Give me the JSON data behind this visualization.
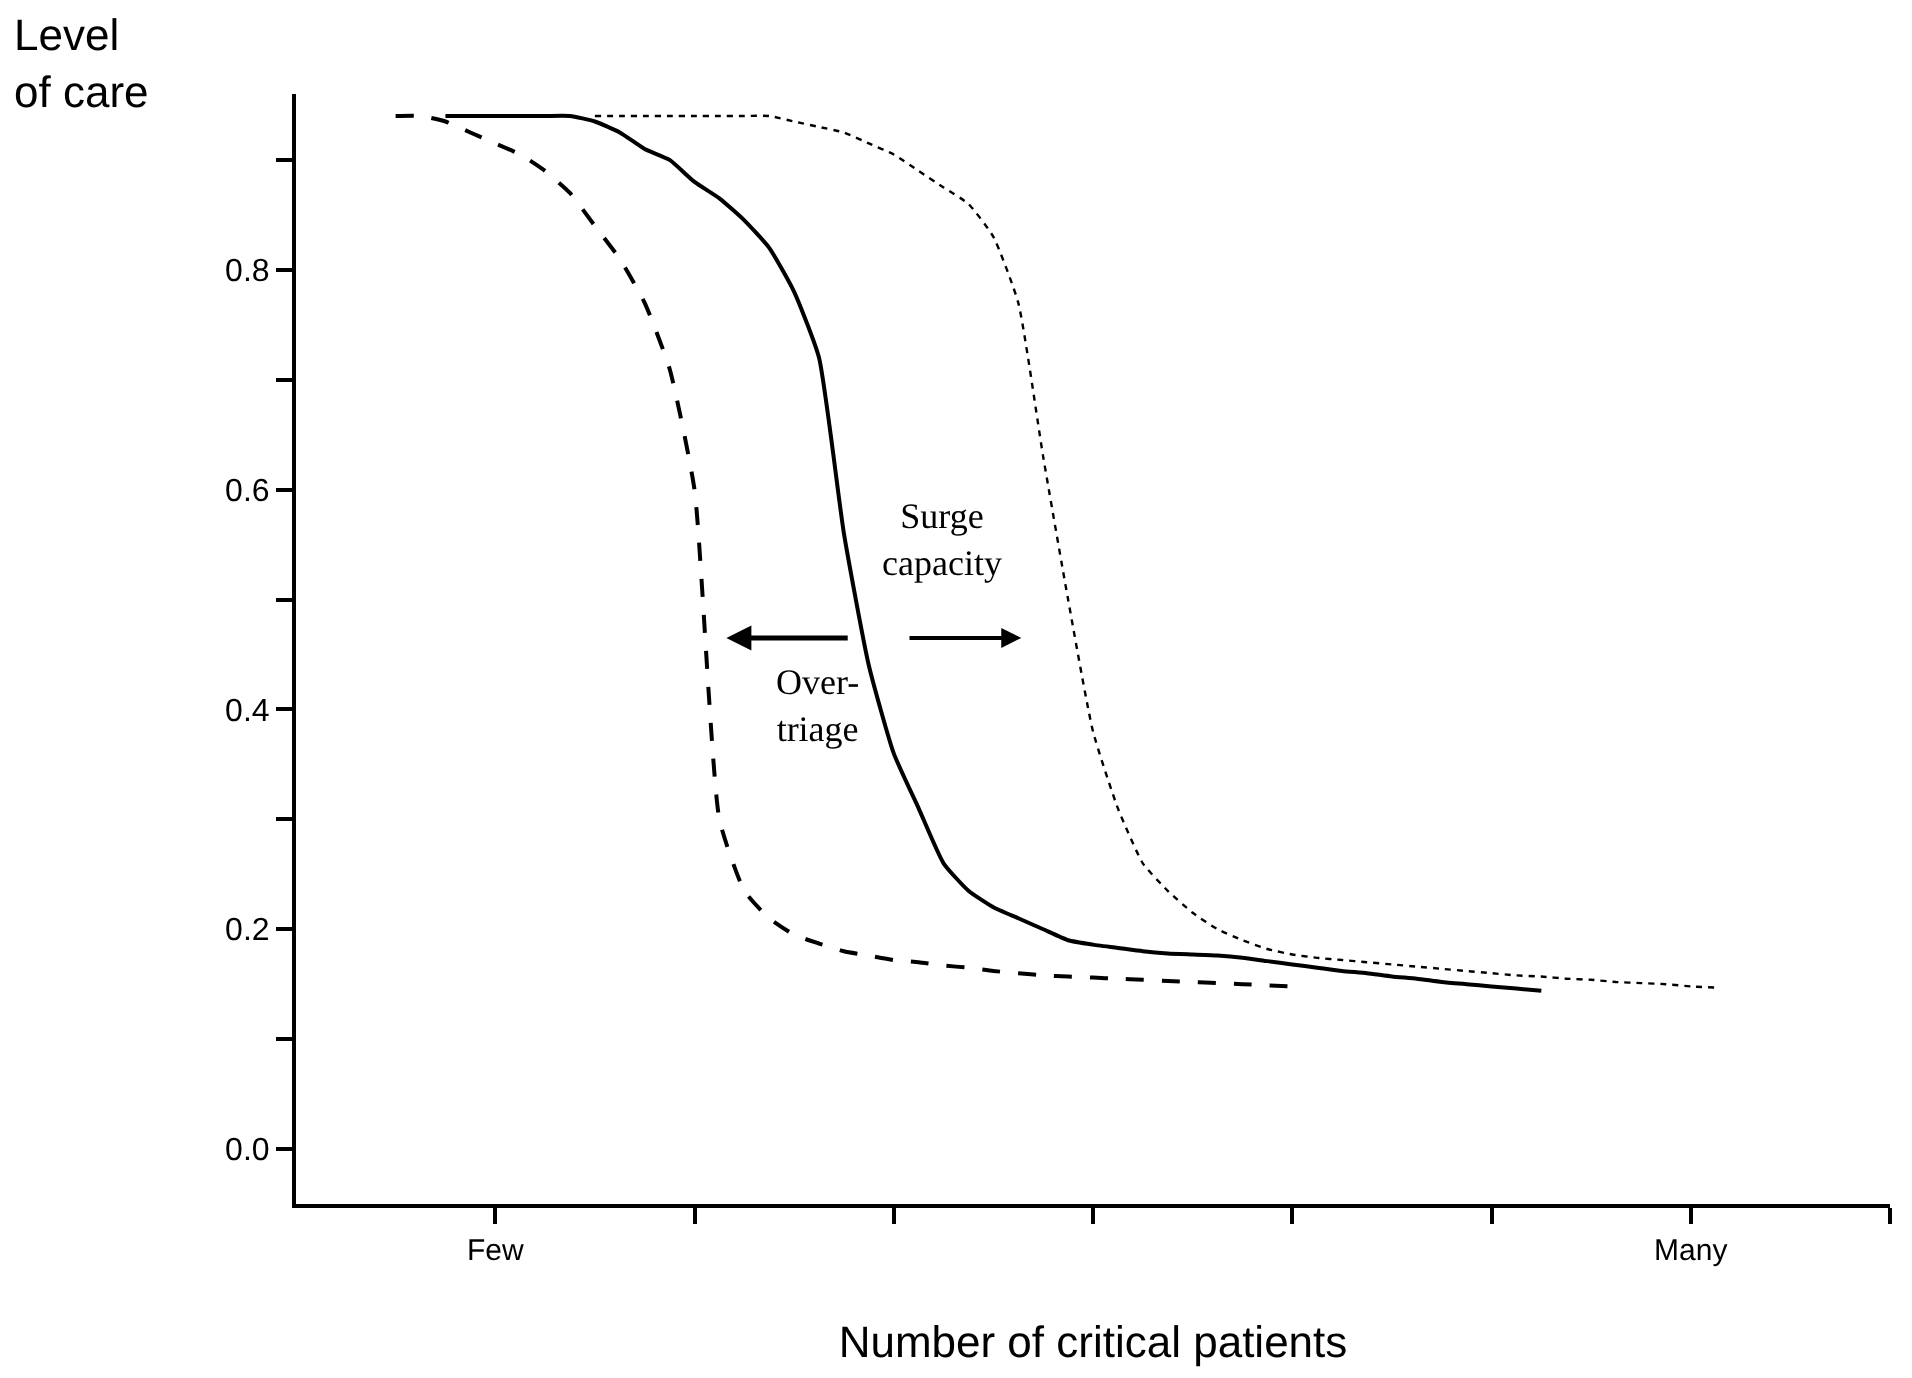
{
  "chart_data": {
    "type": "line",
    "xlabel": "Number of critical patients",
    "ylabel": "Level\nof care",
    "categories": [
      null,
      null,
      null,
      null,
      null,
      null,
      null,
      null,
      "Few",
      null,
      null,
      null,
      null,
      null,
      null,
      null,
      null,
      null,
      null,
      null,
      null,
      null,
      null,
      null,
      null,
      null,
      null,
      null,
      null,
      null,
      null,
      null,
      null,
      null,
      null,
      null,
      null,
      null,
      null,
      null,
      null,
      null,
      null,
      null,
      null,
      null,
      null,
      null,
      null,
      null,
      null,
      null,
      null,
      null,
      null,
      null,
      "Many",
      null,
      null,
      null,
      null,
      null,
      null,
      null,
      null
    ],
    "ylim": [
      -0.05,
      0.96
    ],
    "yticks": [
      {
        "value": 0,
        "label": "0.0"
      },
      {
        "value": 0.1,
        "label": null
      },
      0.2,
      {
        "value": 0.3,
        "label": null
      },
      0.4,
      {
        "value": 0.5,
        "label": null
      },
      0.6,
      {
        "value": 0.7,
        "label": null
      },
      0.8,
      {
        "value": 0.9,
        "label": null
      }
    ],
    "marker": "none",
    "series": [
      {
        "color": "#000000",
        "line_style": "dashed",
        "values": [
          null,
          null,
          null,
          null,
          0.94,
          0.94,
          0.935,
          0.925,
          0.915,
          0.905,
          0.89,
          0.87,
          0.84,
          0.81,
          0.77,
          0.71,
          0.6,
          0.3,
          0.235,
          0.21,
          0.195,
          0.187,
          0.18,
          0.176,
          0.172,
          0.17,
          0.167,
          0.165,
          0.162,
          0.16,
          0.158,
          0.157,
          0.156,
          0.155,
          0.154,
          0.153,
          0.152,
          0.151,
          0.15,
          0.149,
          0.148,
          null,
          null,
          null,
          null,
          null,
          null,
          null,
          null,
          null,
          null,
          null,
          null,
          null,
          null,
          null,
          null,
          null,
          null,
          null,
          null,
          null,
          null,
          null,
          null
        ]
      },
      {
        "color": "#000000",
        "line_style": "solid",
        "values": [
          null,
          null,
          null,
          null,
          null,
          null,
          0.94,
          0.94,
          0.94,
          0.94,
          0.94,
          0.94,
          0.935,
          0.925,
          0.91,
          0.9,
          0.88,
          0.865,
          0.845,
          0.82,
          0.78,
          0.72,
          0.56,
          0.44,
          0.36,
          0.31,
          0.26,
          0.235,
          0.22,
          0.21,
          0.2,
          0.19,
          0.186,
          0.183,
          0.18,
          0.178,
          0.177,
          0.176,
          0.174,
          0.171,
          0.168,
          0.165,
          0.162,
          0.16,
          0.157,
          0.155,
          0.152,
          0.15,
          0.148,
          0.146,
          0.144,
          null,
          null,
          null,
          null,
          null,
          null,
          null,
          null,
          null,
          null,
          null,
          null,
          null,
          null
        ]
      },
      {
        "color": "#000000",
        "line_style": "dotted",
        "values": [
          null,
          null,
          null,
          null,
          null,
          null,
          null,
          null,
          null,
          null,
          null,
          null,
          0.94,
          0.94,
          0.94,
          0.94,
          0.94,
          0.94,
          0.94,
          0.94,
          0.935,
          0.93,
          0.925,
          0.915,
          0.905,
          0.89,
          0.875,
          0.86,
          0.83,
          0.77,
          0.63,
          0.5,
          0.38,
          0.31,
          0.26,
          0.235,
          0.215,
          0.2,
          0.19,
          0.182,
          0.177,
          0.174,
          0.172,
          0.17,
          0.168,
          0.166,
          0.164,
          0.162,
          0.16,
          0.158,
          0.157,
          0.155,
          0.154,
          0.152,
          0.151,
          0.15,
          0.148,
          0.147,
          null,
          null,
          null,
          null,
          null,
          null,
          null
        ]
      }
    ],
    "annotations": [
      "Surge\ncapacity",
      "Over-\ntriage"
    ]
  }
}
